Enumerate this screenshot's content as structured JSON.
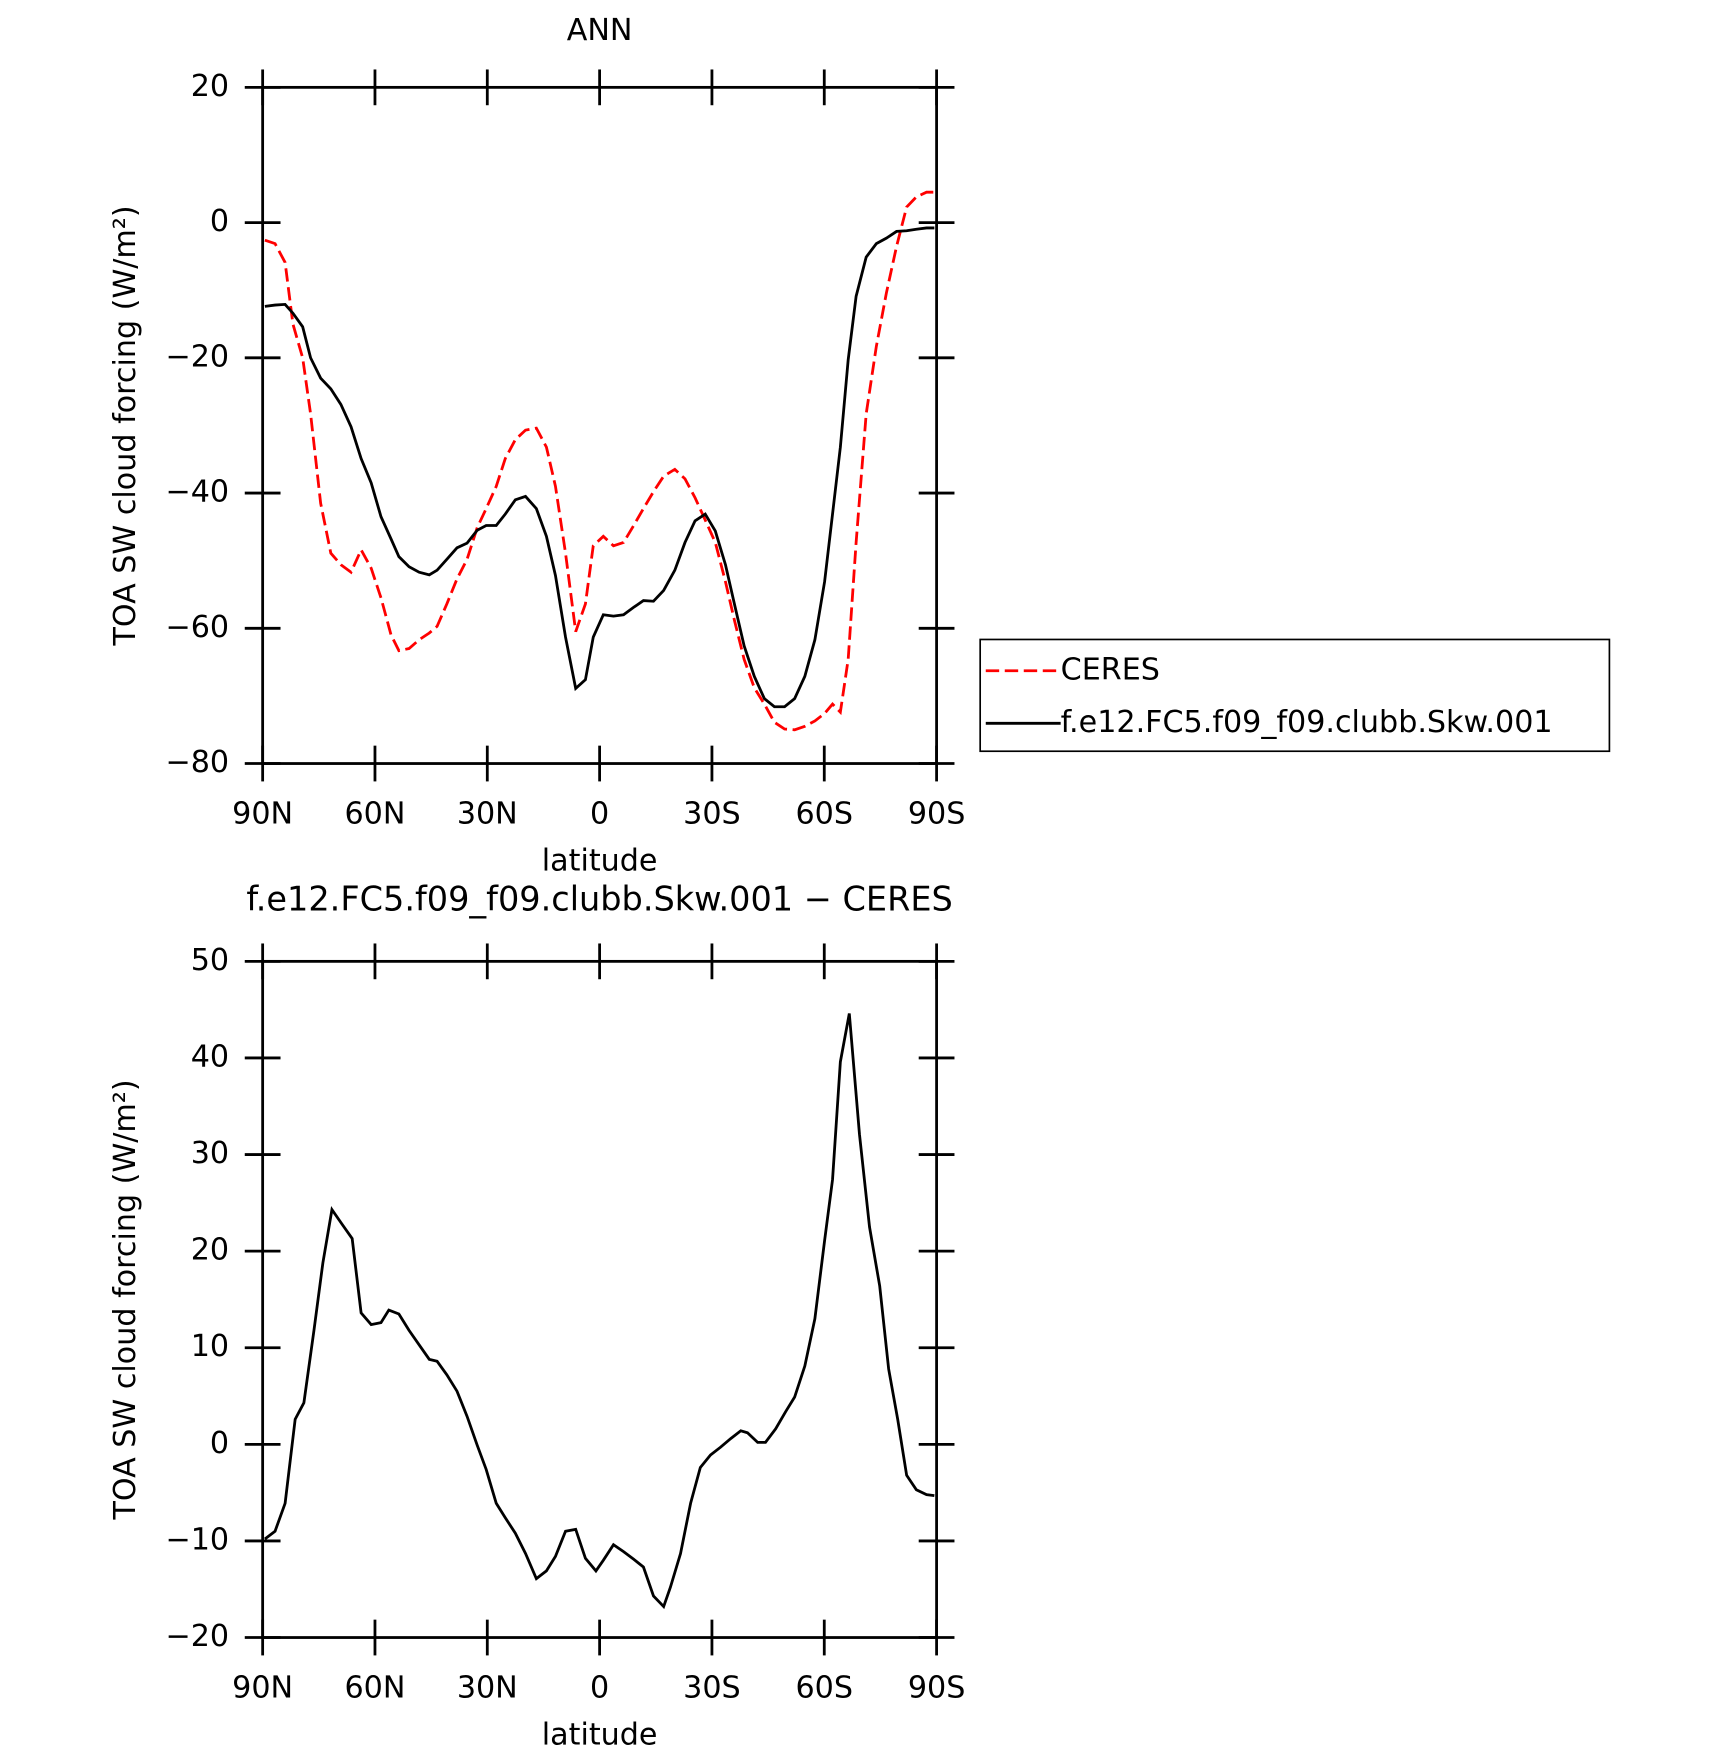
{
  "chart_data": [
    {
      "type": "line",
      "title": "ANN",
      "xlabel": "latitude",
      "ylabel": "TOA SW cloud forcing (W/m²)",
      "x": [
        89.4,
        86.7,
        84.0,
        81.9,
        79.3,
        77.2,
        74.5,
        71.8,
        69.1,
        66.4,
        63.7,
        61.0,
        58.4,
        55.7,
        53.6,
        50.9,
        48.2,
        45.5,
        43.4,
        40.8,
        38.1,
        35.4,
        32.7,
        30.3,
        27.6,
        25.2,
        22.5,
        19.8,
        16.9,
        14.2,
        11.8,
        9.1,
        6.4,
        3.8,
        1.7,
        -1.0,
        -3.7,
        -6.4,
        -9.1,
        -11.7,
        -14.4,
        -17.1,
        -20.1,
        -22.8,
        -25.5,
        -28.2,
        -30.9,
        -33.6,
        -36.0,
        -38.6,
        -41.3,
        -44.0,
        -46.7,
        -49.4,
        -52.1,
        -54.8,
        -57.5,
        -60.1,
        -62.2,
        -64.3,
        -66.4,
        -68.5,
        -71.2,
        -73.9,
        -76.6,
        -79.3,
        -82.0,
        -84.6,
        -87.3,
        -89.4
      ],
      "series": [
        {
          "name": "CERES",
          "color": "#ff0000",
          "dash": true,
          "values": [
            -2.6,
            -3.1,
            -5.9,
            -15.0,
            -20.0,
            -28.3,
            -41.5,
            -48.9,
            -50.6,
            -51.7,
            -48.4,
            -51.1,
            -55.5,
            -61.0,
            -63.3,
            -63.0,
            -61.7,
            -60.7,
            -59.7,
            -56.4,
            -52.7,
            -49.8,
            -45.1,
            -42.3,
            -39.0,
            -34.9,
            -32.1,
            -30.7,
            -30.4,
            -33.2,
            -39.0,
            -48.9,
            -60.5,
            -56.4,
            -47.8,
            -46.4,
            -47.8,
            -47.3,
            -44.8,
            -42.3,
            -39.8,
            -37.5,
            -36.5,
            -37.9,
            -40.7,
            -44.0,
            -47.3,
            -53.1,
            -58.8,
            -64.6,
            -68.8,
            -71.2,
            -73.9,
            -74.9,
            -75.0,
            -74.5,
            -73.7,
            -72.6,
            -71.2,
            -72.4,
            -64.6,
            -47.3,
            -28.3,
            -18.3,
            -10.4,
            -3.5,
            2.3,
            3.8,
            4.5,
            4.5
          ]
        },
        {
          "name": "f.e12.FC5.f09_f09.clubb.Skw.001",
          "color": "#000000",
          "dash": false,
          "values": [
            -12.4,
            -12.2,
            -12.1,
            -13.4,
            -15.4,
            -20.0,
            -23.0,
            -24.6,
            -26.9,
            -30.2,
            -34.9,
            -38.5,
            -43.5,
            -46.8,
            -49.4,
            -50.9,
            -51.7,
            -52.1,
            -51.4,
            -49.8,
            -48.1,
            -47.4,
            -45.5,
            -44.8,
            -44.8,
            -43.1,
            -41.0,
            -40.5,
            -42.3,
            -46.4,
            -52.2,
            -61.3,
            -68.9,
            -67.6,
            -61.3,
            -58.0,
            -58.2,
            -58.0,
            -56.9,
            -55.9,
            -56.0,
            -54.4,
            -51.4,
            -47.3,
            -44.1,
            -43.1,
            -45.6,
            -50.6,
            -56.4,
            -62.6,
            -67.1,
            -70.4,
            -71.6,
            -71.6,
            -70.4,
            -67.1,
            -61.7,
            -53.1,
            -43.1,
            -33.2,
            -20.3,
            -10.9,
            -5.1,
            -3.1,
            -2.3,
            -1.3,
            -1.2,
            -1.0,
            -0.8,
            -0.8
          ]
        }
      ],
      "xlim": [
        90,
        -90
      ],
      "xticks": [
        {
          "value": 90,
          "label": "90N"
        },
        {
          "value": 60,
          "label": "60N"
        },
        {
          "value": 30,
          "label": "30N"
        },
        0,
        {
          "value": -30,
          "label": "30S"
        },
        {
          "value": -60,
          "label": "60S"
        },
        {
          "value": -90,
          "label": "90S"
        }
      ],
      "ylim": [
        -80,
        20
      ],
      "yticks": [
        {
          "value": -80,
          "label": "−80"
        },
        {
          "value": -60,
          "label": "−60"
        },
        {
          "value": -40,
          "label": "−40"
        },
        {
          "value": -20,
          "label": "−20"
        },
        0,
        20
      ],
      "legend": "right",
      "grid": false
    },
    {
      "type": "line",
      "title": "f.e12.FC5.f09_f09.clubb.Skw.001 − CERES",
      "xlabel": "latitude",
      "ylabel": "TOA SW cloud forcing (W/m²)",
      "x": [
        89.4,
        86.7,
        84.0,
        81.3,
        79.0,
        76.3,
        73.9,
        71.5,
        68.8,
        66.1,
        63.7,
        61.0,
        58.4,
        56.3,
        53.6,
        50.9,
        48.2,
        45.5,
        43.4,
        40.8,
        38.1,
        35.4,
        32.7,
        30.3,
        27.6,
        25.2,
        22.5,
        19.8,
        16.9,
        14.2,
        11.8,
        9.1,
        6.4,
        3.8,
        1.0,
        -1.0,
        -3.7,
        -6.4,
        -9.1,
        -11.7,
        -14.4,
        -17.1,
        -18.9,
        -21.6,
        -24.3,
        -26.9,
        -29.6,
        -32.3,
        -35.0,
        -37.7,
        -39.5,
        -42.2,
        -44.3,
        -47.0,
        -49.7,
        -52.1,
        -54.8,
        -57.5,
        -60.1,
        -62.2,
        -64.3,
        -66.7,
        -69.4,
        -72.1,
        -74.8,
        -77.2,
        -79.6,
        -82.0,
        -84.6,
        -87.3,
        -89.4
      ],
      "values": [
        -9.8,
        -9.0,
        -6.1,
        2.6,
        4.3,
        11.8,
        18.8,
        24.3,
        22.8,
        21.3,
        13.6,
        12.4,
        12.6,
        13.9,
        13.5,
        11.8,
        10.3,
        8.8,
        8.6,
        7.2,
        5.5,
        2.9,
        -0.1,
        -2.6,
        -6.1,
        -7.6,
        -9.2,
        -11.3,
        -13.9,
        -13.1,
        -11.6,
        -9.0,
        -8.8,
        -11.8,
        -13.1,
        -12.0,
        -10.4,
        -11.1,
        -11.9,
        -12.7,
        -15.7,
        -16.8,
        -14.8,
        -11.3,
        -6.1,
        -2.4,
        -1.1,
        -0.3,
        0.6,
        1.4,
        1.2,
        0.2,
        0.2,
        1.6,
        3.4,
        4.9,
        8.1,
        13.0,
        21.1,
        27.4,
        39.6,
        44.6,
        32.1,
        22.5,
        16.4,
        7.8,
        2.6,
        -3.2,
        -4.7,
        -5.2,
        -5.3
      ],
      "color": "#000000",
      "xlim": [
        90,
        -90
      ],
      "xticks": [
        {
          "value": 90,
          "label": "90N"
        },
        {
          "value": 60,
          "label": "60N"
        },
        {
          "value": 30,
          "label": "30N"
        },
        0,
        {
          "value": -30,
          "label": "30S"
        },
        {
          "value": -60,
          "label": "60S"
        },
        {
          "value": -90,
          "label": "90S"
        }
      ],
      "ylim": [
        -20,
        50
      ],
      "yticks": [
        {
          "value": -20,
          "label": "−20"
        },
        {
          "value": -10,
          "label": "−10"
        },
        0,
        10,
        20,
        30,
        40,
        50
      ],
      "grid": false
    }
  ]
}
